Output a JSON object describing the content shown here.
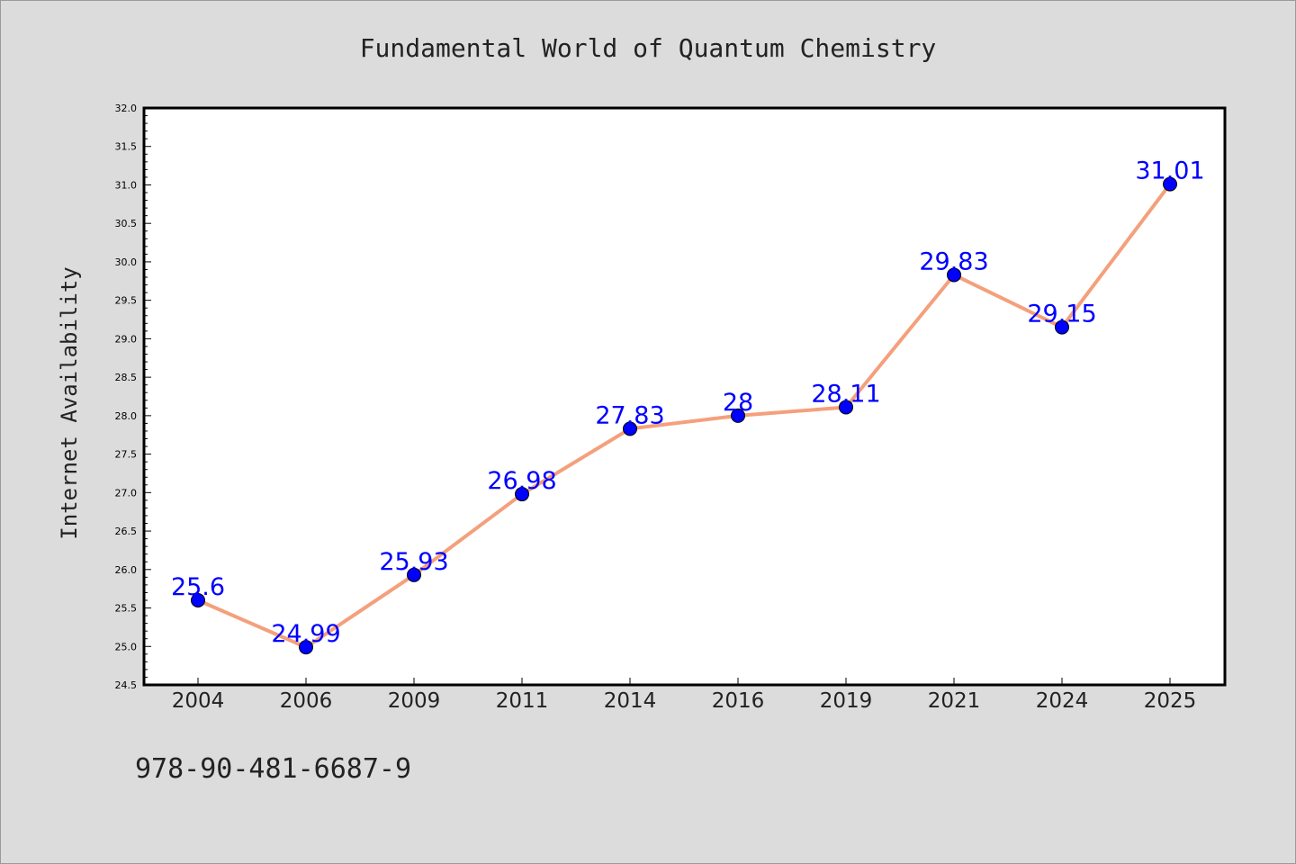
{
  "chart_data": {
    "type": "line",
    "title": "Fundamental World of Quantum Chemistry",
    "xlabel": "",
    "ylabel": "Internet Availability",
    "categories": [
      "2004",
      "2006",
      "2009",
      "2011",
      "2014",
      "2016",
      "2019",
      "2021",
      "2024",
      "2025"
    ],
    "values": [
      25.6,
      24.99,
      25.93,
      26.98,
      27.83,
      28,
      28.11,
      29.83,
      29.15,
      31.01
    ],
    "data_labels": [
      "25.6",
      "24.99",
      "25.93",
      "26.98",
      "27.83",
      "28",
      "28.11",
      "29.83",
      "29.15",
      "31.01"
    ],
    "ylim": [
      24.5,
      32.0
    ],
    "y_ticks": [
      "24.5",
      "25.0",
      "25.5",
      "26.0",
      "26.5",
      "27.0",
      "27.5",
      "28.0",
      "28.5",
      "29.0",
      "29.5",
      "30.0",
      "30.5",
      "31.0",
      "31.5",
      "32.0"
    ],
    "grid": false,
    "legend": "none",
    "colors": {
      "line": "#f4a07c",
      "marker": "#0000ff",
      "data_label": "#0000ff",
      "background": "#dcdcdc",
      "plot_area": "#ffffff"
    }
  },
  "footer": {
    "isbn": "978-90-481-6687-9"
  }
}
